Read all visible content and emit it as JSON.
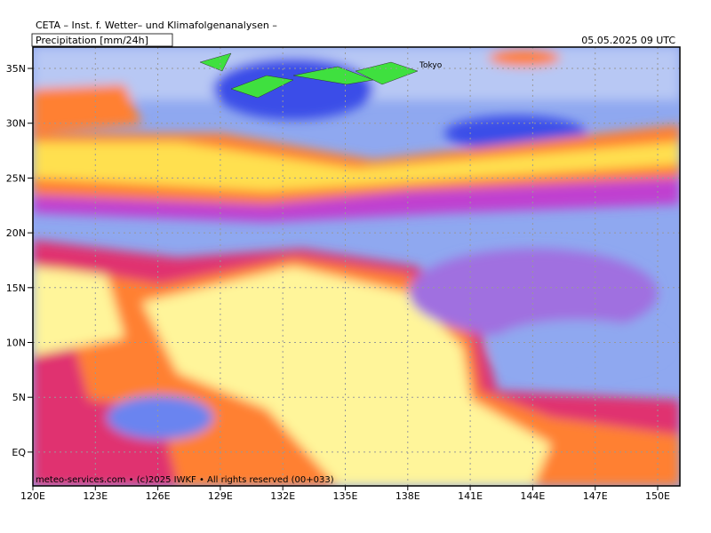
{
  "header": {
    "institute": "CETA – Inst. f. Wetter– und Klimafolgenanalysen –",
    "product": "Precipitation [mm/24h]",
    "valid_time": "05.05.2025 09 UTC"
  },
  "map": {
    "lat_labels": [
      "35N",
      "30N",
      "25N",
      "20N",
      "15N",
      "10N",
      "5N",
      "EQ"
    ],
    "lon_labels": [
      "120E",
      "123E",
      "126E",
      "129E",
      "132E",
      "135E",
      "138E",
      "141E",
      "144E",
      "147E",
      "150E"
    ],
    "place_label": "Tokyo",
    "footer": "meteo-services.com • (c)2025 IWKF • All rights reserved (00+033)"
  }
}
